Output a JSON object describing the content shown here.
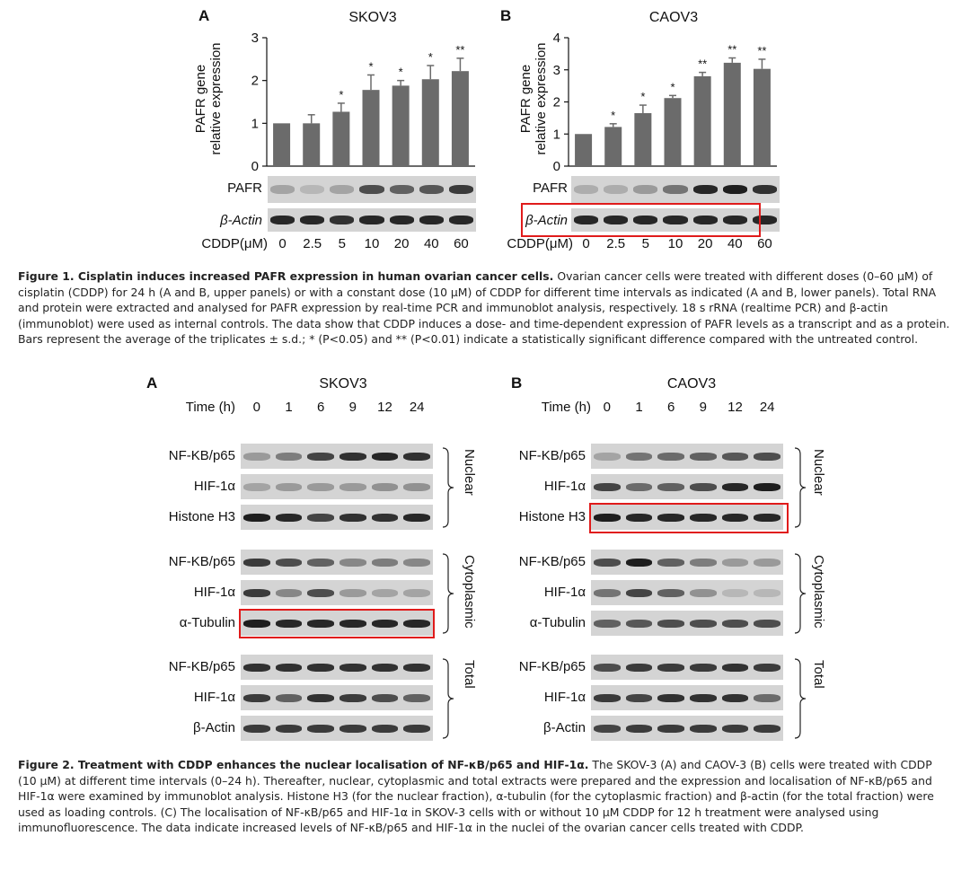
{
  "figure1": {
    "charts": [
      {
        "panel": "A",
        "title": "SKOV3",
        "ylabel_line1": "PAFR gene",
        "ylabel_line2": "relative expression",
        "yticks": [
          "0",
          "1",
          "2",
          "3"
        ],
        "blots": [
          "PAFR",
          "β-Actin"
        ],
        "xlabel": "CDDP(μM)",
        "conc": [
          "0",
          "2.5",
          "5",
          "10",
          "20",
          "40",
          "60"
        ]
      },
      {
        "panel": "B",
        "title": "CAOV3",
        "ylabel_line1": "PAFR gene",
        "ylabel_line2": "relative expression",
        "yticks": [
          "0",
          "1",
          "2",
          "3",
          "4"
        ],
        "blots": [
          "PAFR",
          "β-Actin"
        ],
        "xlabel": "CDDP(μM)",
        "conc": [
          "0",
          "2.5",
          "5",
          "10",
          "20",
          "40",
          "60"
        ]
      }
    ],
    "caption": {
      "lead": "Figure 1. Cisplatin induces increased PAFR expression in human ovarian cancer cells.",
      "body": "Ovarian cancer cells were treated with different doses (0–60 μM) of cisplatin (CDDP) for 24 h (A and B, upper panels) or with a constant dose (10 μM) of CDDP for different time intervals as indicated (A and B, lower panels). Total RNA and protein were extracted and analysed for PAFR expression by real-time PCR and immunoblot analysis, respectively. 18 s rRNA (realtime PCR) and β-actin (immunoblot) were used as internal controls. The data show that CDDP induces a dose- and time-dependent expression of PAFR levels as a transcript and as a protein. Bars represent the average of the triplicates ± s.d.; * (P<0.05) and ** (P<0.01) indicate a statistically significant difference compared with the untreated control."
    }
  },
  "chart_data": [
    {
      "type": "bar",
      "title": "SKOV3",
      "categories": [
        "0",
        "2.5",
        "5",
        "10",
        "20",
        "40",
        "60"
      ],
      "values": [
        1.0,
        1.0,
        1.27,
        1.78,
        1.88,
        2.03,
        2.22
      ],
      "errors": [
        0.0,
        0.2,
        0.2,
        0.35,
        0.12,
        0.32,
        0.3
      ],
      "significance": [
        "",
        "",
        "*",
        "*",
        "*",
        "*",
        "**"
      ],
      "xlabel": "CDDP(μM)",
      "ylabel": "PAFR gene relative expression",
      "ylim": [
        0,
        3
      ]
    },
    {
      "type": "bar",
      "title": "CAOV3",
      "categories": [
        "0",
        "2.5",
        "5",
        "10",
        "20",
        "40",
        "60"
      ],
      "values": [
        1.0,
        1.22,
        1.65,
        2.12,
        2.8,
        3.22,
        3.03
      ],
      "errors": [
        0.0,
        0.1,
        0.25,
        0.08,
        0.12,
        0.15,
        0.3
      ],
      "significance": [
        "",
        "*",
        "*",
        "*",
        "**",
        "**",
        "**"
      ],
      "xlabel": "CDDP(μM)",
      "ylabel": "PAFR gene relative expression",
      "ylim": [
        0,
        4
      ]
    }
  ],
  "figure2": {
    "panels": [
      {
        "panel": "A",
        "title": "SKOV3",
        "time_label": "Time (h)",
        "times": [
          "0",
          "1",
          "6",
          "9",
          "12",
          "24"
        ],
        "groups": [
          {
            "name": "Nuclear",
            "rows": [
              "NF-KB/p65",
              "HIF-1α",
              "Histone H3"
            ]
          },
          {
            "name": "Cytoplasmic",
            "rows": [
              "NF-KB/p65",
              "HIF-1α",
              "α-Tubulin"
            ]
          },
          {
            "name": "Total",
            "rows": [
              "NF-KB/p65",
              "HIF-1α",
              "β-Actin"
            ]
          }
        ]
      },
      {
        "panel": "B",
        "title": "CAOV3",
        "time_label": "Time (h)",
        "times": [
          "0",
          "1",
          "6",
          "9",
          "12",
          "24"
        ],
        "groups": [
          {
            "name": "Nuclear",
            "rows": [
              "NF-KB/p65",
              "HIF-1α",
              "Histone H3"
            ]
          },
          {
            "name": "Cytoplasmic",
            "rows": [
              "NF-KB/p65",
              "HIF-1α",
              "α-Tubulin"
            ]
          },
          {
            "name": "Total",
            "rows": [
              "NF-KB/p65",
              "HIF-1α",
              "β-Actin"
            ]
          }
        ]
      }
    ],
    "caption": {
      "lead": "Figure 2. Treatment with CDDP enhances the nuclear localisation of NF-κB/p65 and HIF-1α.",
      "body": "The SKOV-3 (A) and CAOV-3 (B) cells were treated with CDDP (10 μM) at different time intervals (0–24 h). Thereafter, nuclear, cytoplasmic and total extracts were prepared and the expression and localisation of NF-κB/p65 and HIF-1α were examined by immunoblot analysis. Histone H3 (for the nuclear fraction), α-tubulin (for the cytoplasmic fraction) and β-actin (for the total fraction) were used as loading controls. (C) The localisation of NF-κB/p65 and HIF-1α in SKOV-3 cells with or without 10 μM CDDP for 12 h treatment were analysed using immunofluorescence. The data indicate increased levels of NF-κB/p65 and HIF-1α in the nuclei of the ovarian cancer cells treated with CDDP."
    }
  },
  "colors": {
    "bar": "#6b6b6b",
    "highlight": "#e01b1b",
    "band": "#1e1e1e",
    "blot_bg": "#d4d4d4"
  }
}
